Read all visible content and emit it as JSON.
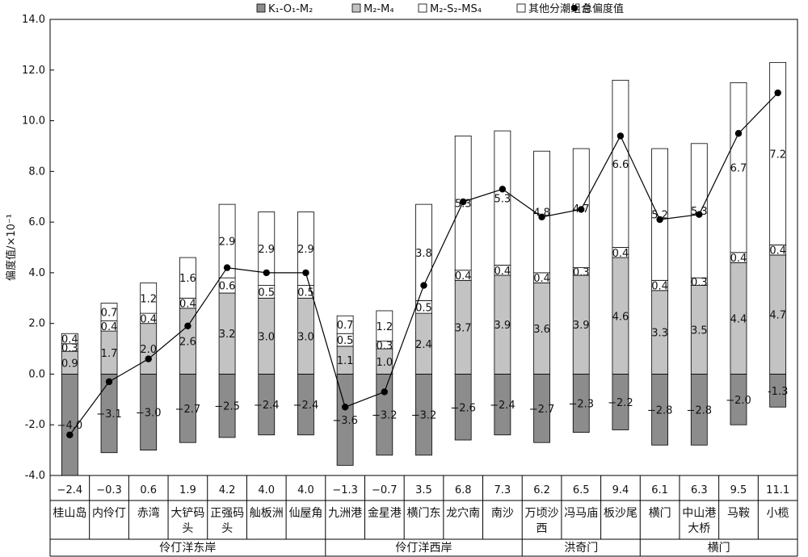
{
  "chart_data": {
    "type": "bar",
    "stacked": true,
    "ylabel": "偏度值/×10⁻¹",
    "ylim": [
      -4.0,
      14.0
    ],
    "ytick_step": 2.0,
    "ytick_labels": [
      "-4.0",
      "-2.0",
      "0.0",
      "2.0",
      "4.0",
      "6.0",
      "8.0",
      "10.0",
      "12.0",
      "14.0"
    ],
    "grid": false,
    "legend_position": "top",
    "legend": [
      {
        "label": "K₁-O₁-M₂",
        "marker": "square",
        "color": "#8c8c8c"
      },
      {
        "label": "M₂-M₄",
        "marker": "square",
        "color": "#c3c3c3"
      },
      {
        "label": "M₂-S₂-MS₄",
        "marker": "square",
        "color": "#ffffff"
      },
      {
        "label": "其他分潮组合",
        "marker": "square",
        "color": "#ffffff"
      },
      {
        "label": "总偏度值",
        "marker": "dot",
        "color": "#000000"
      }
    ],
    "categories": [
      [
        "桂山岛"
      ],
      [
        "内伶仃"
      ],
      [
        "赤湾"
      ],
      [
        "大铲码",
        "头"
      ],
      [
        "正强码",
        "头"
      ],
      [
        "舢板洲"
      ],
      [
        "仙屋角"
      ],
      [
        "九洲港"
      ],
      [
        "金星港"
      ],
      [
        "横门东"
      ],
      [
        "龙穴南"
      ],
      [
        "南沙"
      ],
      [
        "万顷沙",
        "西"
      ],
      [
        "冯马庙"
      ],
      [
        "板沙尾"
      ],
      [
        "横门"
      ],
      [
        "中山港",
        "大桥"
      ],
      [
        "马鞍"
      ],
      [
        "小榄"
      ]
    ],
    "series": [
      {
        "name": "K₁-O₁-M₂",
        "color": "#8c8c8c",
        "values": [
          -4.0,
          -3.1,
          -3.0,
          -2.7,
          -2.5,
          -2.4,
          -2.4,
          -3.6,
          -3.2,
          -3.2,
          -2.6,
          -2.4,
          -2.7,
          -2.3,
          -2.2,
          -2.8,
          -2.8,
          -2.0,
          -1.3
        ],
        "labels": [
          "−4.0",
          "−3.1",
          "−3.0",
          "−2.7",
          "−2.5",
          "−2.4",
          "−2.4",
          "−3.6",
          "−3.2",
          "−3.2",
          "−2.6",
          "−2.4",
          "−2.7",
          "−2.3",
          "−2.2",
          "−2.8",
          "−2.8",
          "−2.0",
          "-1.3"
        ]
      },
      {
        "name": "M₂-M₄",
        "color": "#c3c3c3",
        "values": [
          0.9,
          1.7,
          2.0,
          2.6,
          3.2,
          3.0,
          3.0,
          1.1,
          1.0,
          2.4,
          3.7,
          3.9,
          3.6,
          3.9,
          4.6,
          3.3,
          3.5,
          4.4,
          4.7
        ],
        "labels": [
          "0.9",
          "1.7",
          "2.0",
          "2.6",
          "3.2",
          "3.0",
          "3.0",
          "1.1",
          "1.0",
          "2.4",
          "3.7",
          "3.9",
          "3.6",
          "3.9",
          "4.6",
          "3.3",
          "3.5",
          "4.4",
          "4.7"
        ]
      },
      {
        "name": "M₂-S₂-MS₄",
        "color": "#ffffff",
        "values": [
          0.3,
          0.4,
          0.4,
          0.4,
          0.6,
          0.5,
          0.5,
          0.5,
          0.3,
          0.5,
          0.4,
          0.4,
          0.4,
          0.3,
          0.4,
          0.4,
          0.3,
          0.4,
          0.4
        ],
        "labels": [
          "0.3",
          "0.4",
          "0.4",
          "0.4",
          "0.6",
          "0.5",
          "0.5",
          "0.5",
          "0.3",
          "0.5",
          "0.4",
          "0.4",
          "0.4",
          "0.3",
          "0.4",
          "0.4",
          "0.3",
          "0.4",
          "0.4"
        ]
      },
      {
        "name": "其他分潮组合",
        "color": "#ffffff",
        "values": [
          0.4,
          0.7,
          1.2,
          1.6,
          2.9,
          2.9,
          2.9,
          0.7,
          1.2,
          3.8,
          5.3,
          5.3,
          4.8,
          4.7,
          6.6,
          5.2,
          5.3,
          6.7,
          7.2
        ],
        "labels": [
          "0.4",
          "0.7",
          "1.2",
          "1.6",
          "2.9",
          "2.9",
          "2.9",
          "0.7",
          "1.2",
          "3.8",
          "5.3",
          "5.3",
          "4.8",
          "4.7",
          "6.6",
          "5.2",
          "5.3",
          "6.7",
          "7.2"
        ]
      }
    ],
    "total": {
      "name": "总偏度值",
      "values": [
        -2.4,
        -0.3,
        0.6,
        1.9,
        4.2,
        4.0,
        4.0,
        -1.3,
        -0.7,
        3.5,
        6.8,
        7.3,
        6.2,
        6.5,
        9.4,
        6.1,
        6.3,
        9.5,
        11.1
      ],
      "labels": [
        "−2.4",
        "−0.3",
        "0.6",
        "1.9",
        "4.2",
        "4.0",
        "4.0",
        "−1.3",
        "−0.7",
        "3.5",
        "6.8",
        "7.3",
        "6.2",
        "6.5",
        "9.4",
        "6.1",
        "6.3",
        "9.5",
        "11.1"
      ]
    },
    "groups": [
      {
        "label": "伶仃洋东岸",
        "start": 0,
        "end": 6
      },
      {
        "label": "伶仃洋西岸",
        "start": 7,
        "end": 11
      },
      {
        "label": "洪奇门",
        "start": 12,
        "end": 14
      },
      {
        "label": "横门",
        "start": 15,
        "end": 18
      }
    ]
  }
}
